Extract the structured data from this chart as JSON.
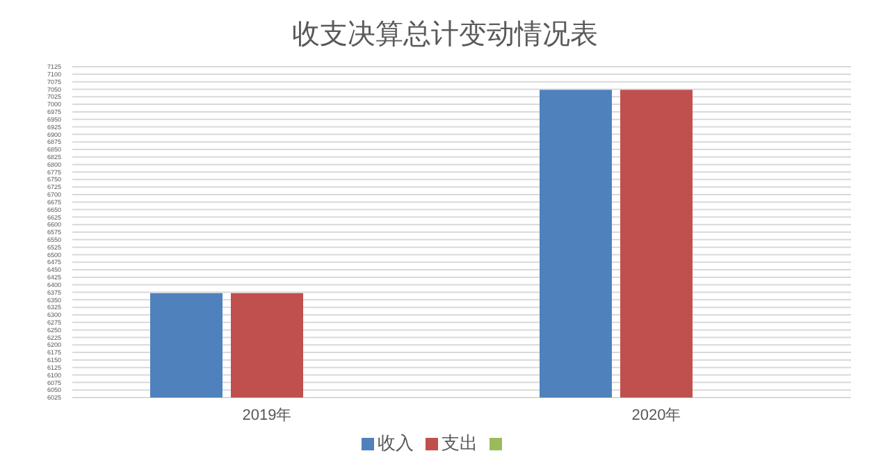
{
  "chart_data": {
    "type": "bar",
    "title": "收支决算总计变动情况表",
    "categories": [
      "2019年",
      "2020年"
    ],
    "series": [
      {
        "name": "收入",
        "color": "#4f81bd",
        "values": [
          6372,
          7048
        ]
      },
      {
        "name": "支出",
        "color": "#c0504d",
        "values": [
          6372,
          7048
        ]
      },
      {
        "color": "#9bbb59",
        "values": [
          null,
          null
        ]
      }
    ],
    "ylim": [
      6025,
      7125
    ],
    "yticks": [
      6025,
      6050,
      6075,
      6100,
      6125,
      6150,
      6175,
      6200,
      6225,
      6250,
      6275,
      6300,
      6325,
      6350,
      6375,
      6400,
      6425,
      6450,
      6475,
      6500,
      6525,
      6550,
      6575,
      6600,
      6625,
      6650,
      6675,
      6700,
      6725,
      6750,
      6775,
      6800,
      6825,
      6850,
      6875,
      6900,
      6925,
      6950,
      6975,
      7000,
      7025,
      7050,
      7075,
      7100,
      7125
    ],
    "grid": "y",
    "legend": "bottom"
  }
}
